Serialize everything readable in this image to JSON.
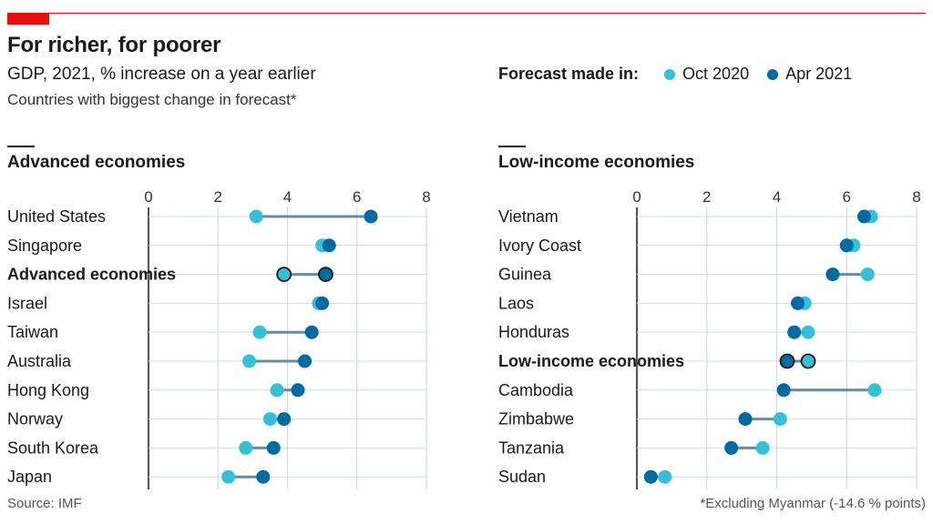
{
  "header": {
    "title": "For richer, for poorer",
    "subtitle": "GDP, 2021, % increase on a year earlier",
    "subtitle2": "Countries with biggest change in forecast*"
  },
  "legend": {
    "title": "Forecast made in:",
    "items": [
      {
        "label": "Oct 2020",
        "color": "#36c0d8"
      },
      {
        "label": "Apr 2021",
        "color": "#006ba2"
      }
    ]
  },
  "chart_data": [
    {
      "type": "dumbbell",
      "title": "Advanced economies",
      "xlim": [
        0,
        8
      ],
      "ticks": [
        "0",
        "2",
        "4",
        "6",
        "8"
      ],
      "categories": [
        "United States",
        "Singapore",
        "Advanced economies",
        "Israel",
        "Taiwan",
        "Australia",
        "Hong Kong",
        "Norway",
        "South Korea",
        "Japan"
      ],
      "highlight": "Advanced economies",
      "series": [
        {
          "name": "Oct 2020",
          "values": [
            3.1,
            5.0,
            3.9,
            4.9,
            3.2,
            2.9,
            3.7,
            3.5,
            2.8,
            2.3
          ]
        },
        {
          "name": "Apr 2021",
          "values": [
            6.4,
            5.2,
            5.1,
            5.0,
            4.7,
            4.5,
            4.3,
            3.9,
            3.6,
            3.3
          ]
        }
      ]
    },
    {
      "type": "dumbbell",
      "title": "Low-income economies",
      "xlim": [
        0,
        8
      ],
      "ticks": [
        "0",
        "2",
        "4",
        "6",
        "8"
      ],
      "categories": [
        "Vietnam",
        "Ivory Coast",
        "Guinea",
        "Laos",
        "Honduras",
        "Low-income economies",
        "Cambodia",
        "Zimbabwe",
        "Tanzania",
        "Sudan"
      ],
      "highlight": "Low-income economies",
      "series": [
        {
          "name": "Oct 2020",
          "values": [
            6.7,
            6.2,
            6.6,
            4.8,
            4.9,
            4.9,
            6.8,
            4.1,
            3.6,
            0.8
          ]
        },
        {
          "name": "Apr 2021",
          "values": [
            6.5,
            6.0,
            5.6,
            4.6,
            4.5,
            4.3,
            4.2,
            3.1,
            2.7,
            0.4
          ]
        }
      ]
    }
  ],
  "footer": {
    "source": "Source: IMF",
    "footnote": "*Excluding Myanmar (-14.6 % points)"
  }
}
